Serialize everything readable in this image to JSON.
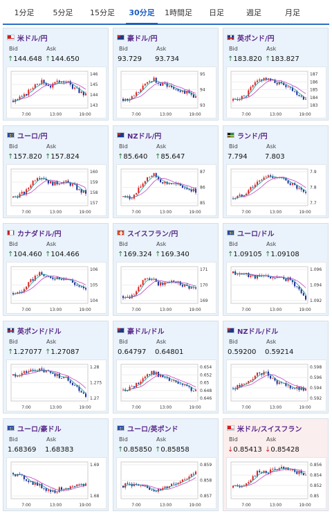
{
  "tabs": [
    {
      "label": "1分足",
      "active": false
    },
    {
      "label": "5分足",
      "active": false
    },
    {
      "label": "15分足",
      "active": false
    },
    {
      "label": "30分足",
      "active": true
    },
    {
      "label": "1時間足",
      "active": false
    },
    {
      "label": "日足",
      "active": false
    },
    {
      "label": "週足",
      "active": false
    },
    {
      "label": "月足",
      "active": false
    }
  ],
  "labels": {
    "bid": "Bid",
    "ask": "Ask"
  },
  "cards": [
    {
      "pair": "米ドル/円",
      "flag": "us",
      "trend": "up",
      "bid": "144.648",
      "ask": "144.650",
      "ticks": [
        "146",
        "145",
        "144",
        "143"
      ],
      "x_ticks": [
        "7:00",
        "13:00",
        "19:00"
      ],
      "tint": "blue"
    },
    {
      "pair": "豪ドル/円",
      "flag": "au",
      "trend": "none",
      "bid": "93.729",
      "ask": "93.734",
      "ticks": [
        "95",
        "94",
        "93"
      ],
      "x_ticks": [
        "7:00",
        "13:00",
        "19:00"
      ],
      "tint": "blue"
    },
    {
      "pair": "英ポンド/円",
      "flag": "gb",
      "trend": "up",
      "bid": "183.820",
      "ask": "183.827",
      "ticks": [
        "187",
        "186",
        "185",
        "184",
        "183"
      ],
      "x_ticks": [
        "7:00",
        "13:00",
        "19:00"
      ],
      "tint": "blue"
    },
    {
      "pair": "ユーロ/円",
      "flag": "eu",
      "trend": "up",
      "bid": "157.820",
      "ask": "157.824",
      "ticks": [
        "160",
        "159",
        "158",
        "157"
      ],
      "x_ticks": [
        "7:00",
        "13:00",
        "19:00"
      ],
      "tint": "blue"
    },
    {
      "pair": "NZドル/円",
      "flag": "nz",
      "trend": "up",
      "bid": "85.640",
      "ask": "85.647",
      "ticks": [
        "87",
        "86",
        "85"
      ],
      "x_ticks": [
        "7:00",
        "13:00",
        "19:00"
      ],
      "tint": "blue"
    },
    {
      "pair": "ランド/円",
      "flag": "za",
      "trend": "none",
      "bid": "7.794",
      "ask": "7.803",
      "ticks": [
        "7.9",
        "7.8",
        "7.7"
      ],
      "x_ticks": [
        "7:00",
        "13:00",
        "19:00"
      ],
      "tint": "blue"
    },
    {
      "pair": "カナダドル/円",
      "flag": "ca",
      "trend": "up",
      "bid": "104.460",
      "ask": "104.466",
      "ticks": [
        "106",
        "105",
        "104"
      ],
      "x_ticks": [
        "7:00",
        "13:00",
        "19:00"
      ],
      "tint": "blue"
    },
    {
      "pair": "スイスフラン/円",
      "flag": "ch",
      "trend": "up",
      "bid": "169.324",
      "ask": "169.340",
      "ticks": [
        "171",
        "170",
        "169"
      ],
      "x_ticks": [
        "7:00",
        "13:00",
        "19:00"
      ],
      "tint": "blue"
    },
    {
      "pair": "ユーロ/ドル",
      "flag": "eu",
      "trend": "up",
      "bid": "1.09105",
      "ask": "1.09108",
      "ticks": [
        "1.096",
        "1.094",
        "1.092"
      ],
      "x_ticks": [
        "7:00",
        "13:00",
        "19:00"
      ],
      "tint": "blue"
    },
    {
      "pair": "英ポンド/ドル",
      "flag": "gb",
      "trend": "up",
      "bid": "1.27077",
      "ask": "1.27087",
      "ticks": [
        "1.28",
        "1.275",
        "1.27"
      ],
      "x_ticks": [
        "7:00",
        "13:00",
        "19:00"
      ],
      "tint": "blue"
    },
    {
      "pair": "豪ドル/ドル",
      "flag": "au",
      "trend": "none",
      "bid": "0.64797",
      "ask": "0.64801",
      "ticks": [
        "0.654",
        "0.652",
        "0.65",
        "0.648",
        "0.646"
      ],
      "x_ticks": [
        "7:00",
        "13:00",
        "19:00"
      ],
      "tint": "blue"
    },
    {
      "pair": "NZドル/ドル",
      "flag": "nz",
      "trend": "none",
      "bid": "0.59200",
      "ask": "0.59214",
      "ticks": [
        "0.598",
        "0.596",
        "0.594",
        "0.592"
      ],
      "x_ticks": [
        "7:00",
        "13:00",
        "19:00"
      ],
      "tint": "blue"
    },
    {
      "pair": "ユーロ/豪ドル",
      "flag": "eu",
      "trend": "none",
      "bid": "1.68369",
      "ask": "1.68383",
      "ticks": [
        "1.69",
        "1.68"
      ],
      "x_ticks": [
        "7:00",
        "13:00",
        "19:00"
      ],
      "tint": "blue"
    },
    {
      "pair": "ユーロ/英ポンド",
      "flag": "eu",
      "trend": "up",
      "bid": "0.85850",
      "ask": "0.85858",
      "ticks": [
        "0.859",
        "0.858",
        "0.857"
      ],
      "x_ticks": [
        "7:00",
        "13:00",
        "19:00"
      ],
      "tint": "blue"
    },
    {
      "pair": "米ドル/スイスフラン",
      "flag": "us",
      "trend": "down",
      "bid": "0.85413",
      "ask": "0.85428",
      "ticks": [
        "0.856",
        "0.854",
        "0.852",
        "0.85"
      ],
      "x_ticks": [
        "7:00",
        "13:00",
        "19:00"
      ],
      "tint": "pink"
    }
  ],
  "colors": {
    "up_candle": "#e02020",
    "down_candle": "#1a2a9a",
    "ma_line": "#c040c0",
    "ma_line2": "#1a9a9a",
    "arrow_up": "#2a7a3a",
    "arrow_down": "#cc2222",
    "pair_text": "#5a2a8a",
    "tab_active": "#1b5fc2"
  }
}
